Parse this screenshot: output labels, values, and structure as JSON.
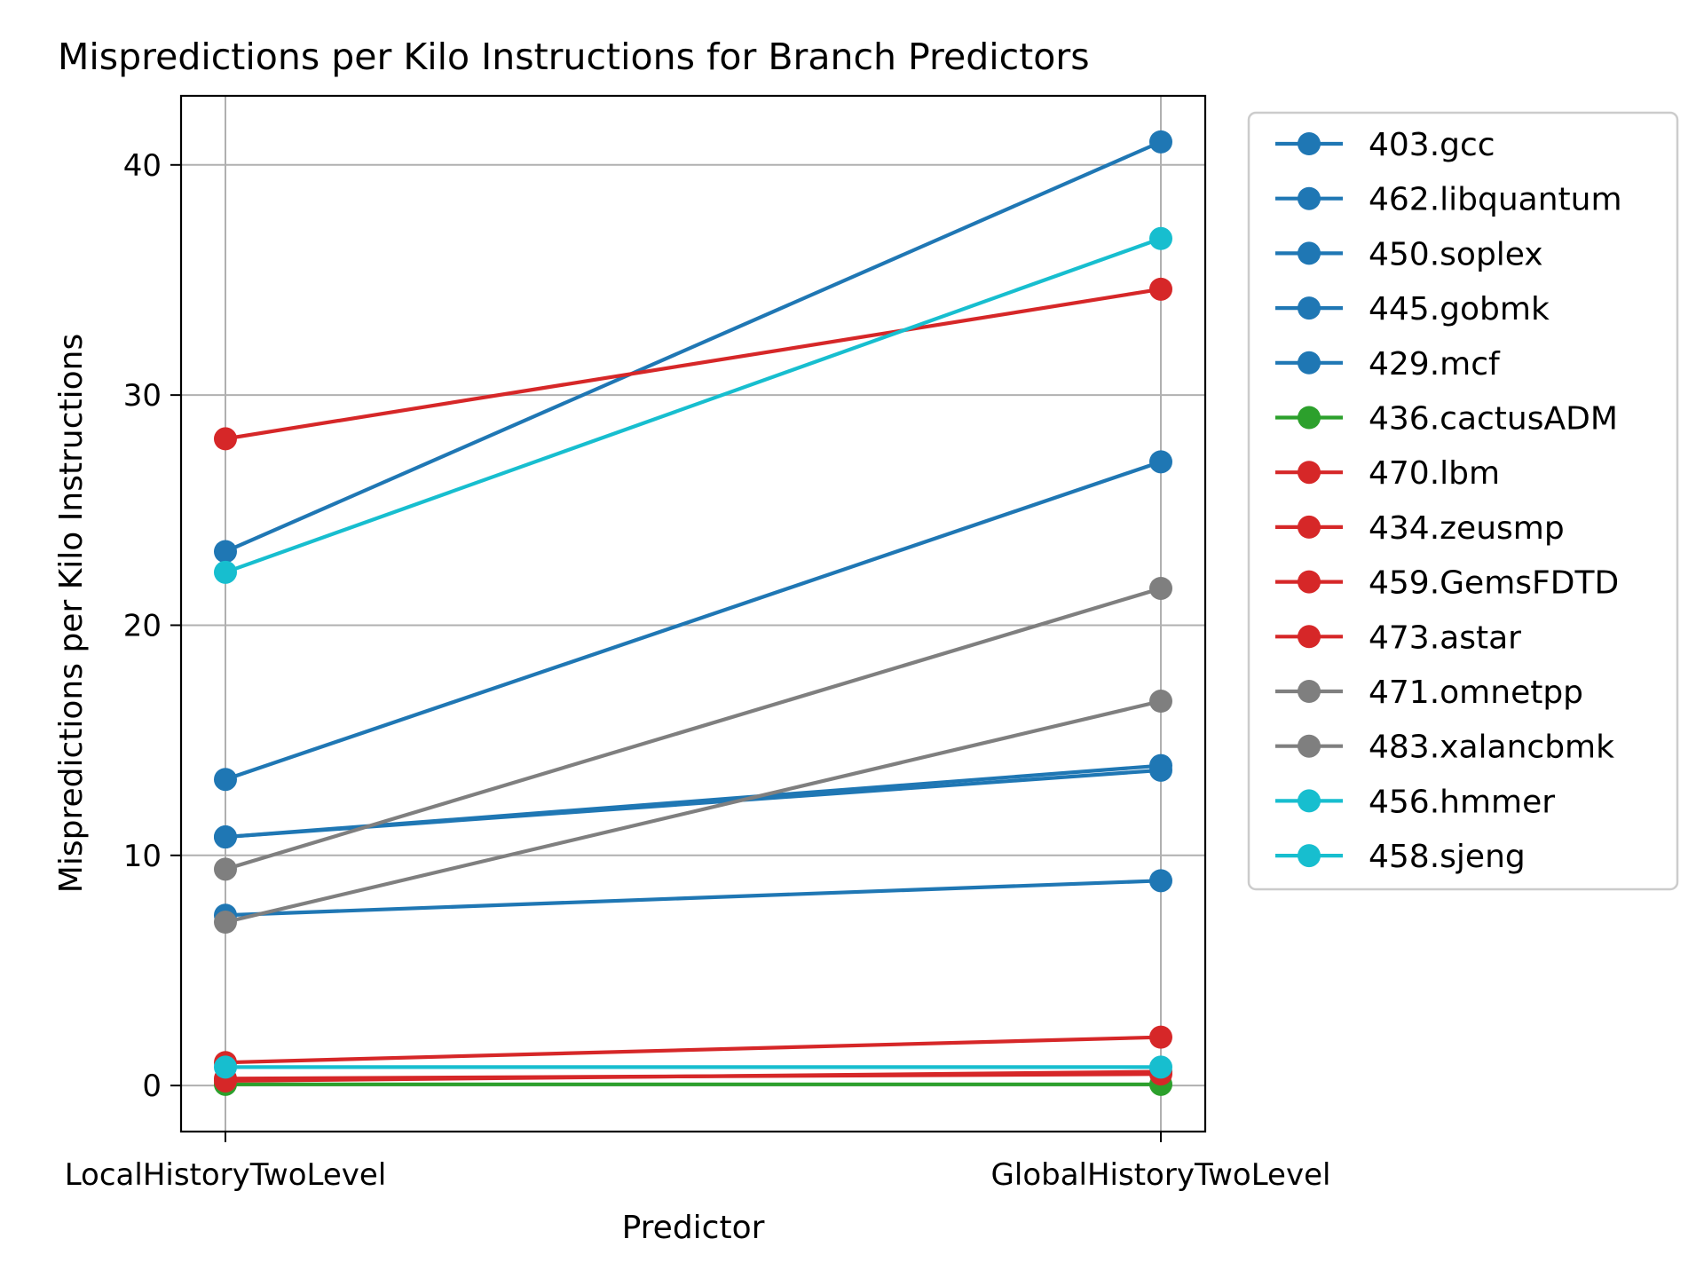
{
  "chart_data": {
    "type": "line",
    "title": "Mispredictions per Kilo Instructions for Branch Predictors",
    "xlabel": "Predictor",
    "ylabel": "Mispredictions per Kilo Instructions",
    "categories": [
      "LocalHistoryTwoLevel",
      "GlobalHistoryTwoLevel"
    ],
    "ylim": [
      -2,
      43
    ],
    "yticks": [
      0,
      10,
      20,
      30,
      40
    ],
    "grid": true,
    "legend_position": "outside-right",
    "series": [
      {
        "name": "403.gcc",
        "color": "#1f77b4",
        "values": [
          23.2,
          41.0
        ]
      },
      {
        "name": "462.libquantum",
        "color": "#1f77b4",
        "values": [
          13.3,
          27.1
        ]
      },
      {
        "name": "450.soplex",
        "color": "#1f77b4",
        "values": [
          10.8,
          13.9
        ]
      },
      {
        "name": "445.gobmk",
        "color": "#1f77b4",
        "values": [
          10.8,
          13.7
        ]
      },
      {
        "name": "429.mcf",
        "color": "#1f77b4",
        "values": [
          7.4,
          8.9
        ]
      },
      {
        "name": "436.cactusADM",
        "color": "#2ca02c",
        "values": [
          0.05,
          0.05
        ]
      },
      {
        "name": "470.lbm",
        "color": "#d62728",
        "values": [
          28.1,
          34.6
        ]
      },
      {
        "name": "434.zeusmp",
        "color": "#d62728",
        "values": [
          1.0,
          2.1
        ]
      },
      {
        "name": "459.GemsFDTD",
        "color": "#d62728",
        "values": [
          0.3,
          0.5
        ]
      },
      {
        "name": "473.astar",
        "color": "#d62728",
        "values": [
          0.2,
          0.6
        ]
      },
      {
        "name": "471.omnetpp",
        "color": "#7f7f7f",
        "values": [
          9.4,
          21.6
        ]
      },
      {
        "name": "483.xalancbmk",
        "color": "#7f7f7f",
        "values": [
          7.1,
          16.7
        ]
      },
      {
        "name": "456.hmmer",
        "color": "#17becf",
        "values": [
          22.3,
          36.8
        ]
      },
      {
        "name": "458.sjeng",
        "color": "#17becf",
        "values": [
          0.8,
          0.8
        ]
      }
    ]
  }
}
